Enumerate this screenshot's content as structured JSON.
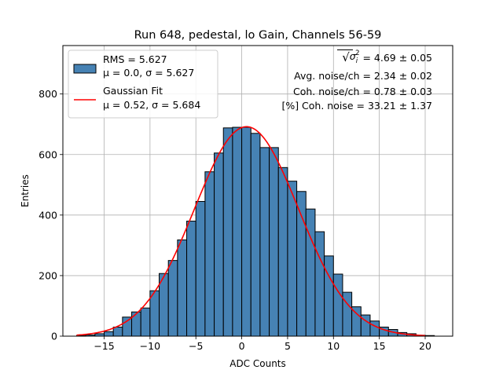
{
  "chart_data": {
    "type": "bar",
    "title": "Run 648, pedestal, lo Gain, Channels 56-59",
    "xlabel": "ADC Counts",
    "ylabel": "Entries",
    "xlim": [
      -19.5,
      23
    ],
    "ylim": [
      0,
      960
    ],
    "grid": true,
    "xticks": [
      -15,
      -10,
      -5,
      0,
      5,
      10,
      15,
      20
    ],
    "xtick_labels": [
      "−15",
      "−10",
      "−5",
      "0",
      "5",
      "10",
      "15",
      "20"
    ],
    "yticks": [
      0,
      200,
      400,
      600,
      800
    ],
    "ytick_labels": [
      "0",
      "200",
      "400",
      "600",
      "800"
    ],
    "histogram": {
      "name": "RMS = 5.627",
      "stats": "μ = 0.0, σ = 5.627",
      "color": "#4682b4",
      "edge_color": "#000000",
      "bin_width": 1,
      "bin_lefts": [
        -18,
        -17,
        -16,
        -15,
        -14,
        -13,
        -12,
        -11,
        -10,
        -9,
        -8,
        -7,
        -6,
        -5,
        -4,
        -3,
        -2,
        -1,
        0,
        1,
        2,
        3,
        4,
        5,
        6,
        7,
        8,
        9,
        10,
        11,
        12,
        13,
        14,
        15,
        16,
        17,
        18,
        19,
        20
      ],
      "values": [
        2,
        4,
        8,
        15,
        30,
        63,
        80,
        93,
        150,
        207,
        250,
        318,
        380,
        445,
        543,
        605,
        688,
        690,
        690,
        670,
        623,
        623,
        557,
        512,
        478,
        420,
        345,
        265,
        205,
        145,
        97,
        70,
        50,
        30,
        22,
        12,
        8,
        3,
        2
      ]
    },
    "fit": {
      "name": "Gaussian Fit",
      "stats": "μ = 0.52, σ = 5.684",
      "color": "#ff0000",
      "mu": 0.52,
      "sigma": 5.684,
      "amplitude": 692,
      "x_range": [
        -18,
        20
      ]
    },
    "legend_location": "upper-left",
    "annotations": [
      {
        "prefix": "",
        "suffix": " = 4.69 ± 0.05",
        "math": {
          "root": "√",
          "var": "σ",
          "sub": "i",
          "sup": "2"
        }
      },
      {
        "text": "Avg. noise/ch = 2.34 ± 0.02"
      },
      {
        "text": "Coh. noise/ch = 0.78 ± 0.03"
      },
      {
        "text": "[%] Coh. noise = 33.21 ± 1.37"
      }
    ]
  }
}
